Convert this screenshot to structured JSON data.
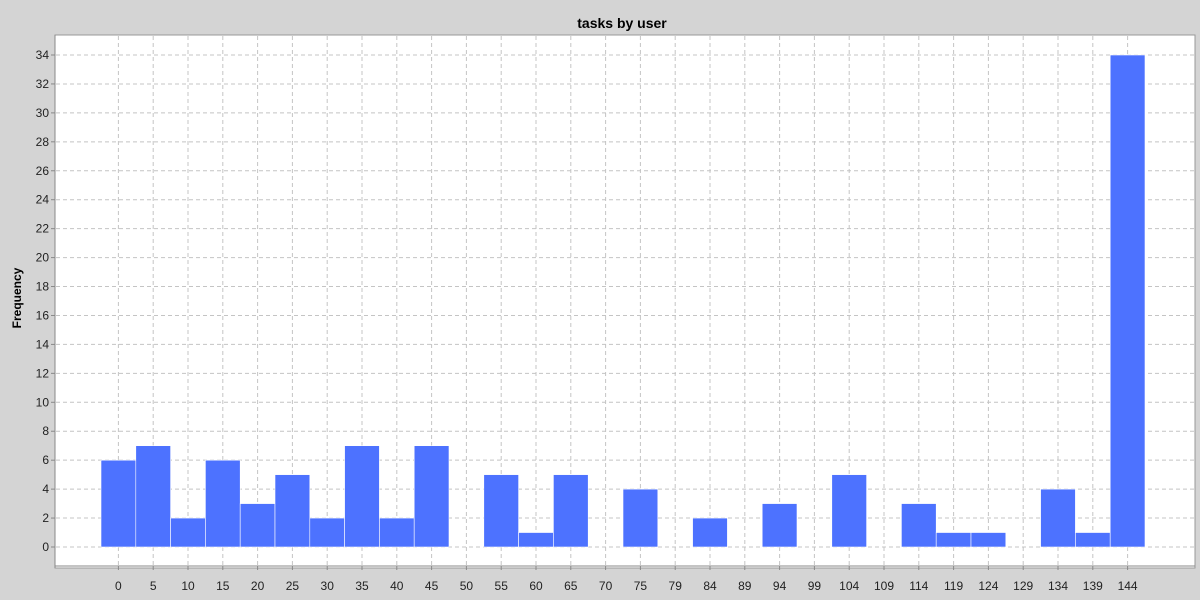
{
  "chart_data": {
    "type": "bar",
    "title": "tasks by user",
    "xlabel": "",
    "ylabel": "Frequency",
    "ylim": [
      -1,
      35
    ],
    "yticks": [
      0,
      2,
      4,
      6,
      8,
      10,
      12,
      14,
      16,
      18,
      20,
      22,
      24,
      26,
      28,
      30,
      32,
      34
    ],
    "xticks": [
      "0",
      "5",
      "10",
      "15",
      "20",
      "25",
      "30",
      "35",
      "40",
      "45",
      "50",
      "55",
      "60",
      "65",
      "70",
      "75",
      "79",
      "84",
      "89",
      "94",
      "99",
      "104",
      "109",
      "114",
      "119",
      "124",
      "129",
      "134",
      "139",
      "144"
    ],
    "values": [
      6,
      7,
      2,
      6,
      3,
      5,
      2,
      7,
      2,
      7,
      0,
      5,
      1,
      5,
      0,
      4,
      0,
      2,
      0,
      3,
      0,
      5,
      0,
      3,
      1,
      1,
      0,
      4,
      1,
      34
    ],
    "grid": true,
    "bar_color": "#4d72ff",
    "background_color": "#ffffff",
    "outer_background_color": "#d4d4d4"
  }
}
